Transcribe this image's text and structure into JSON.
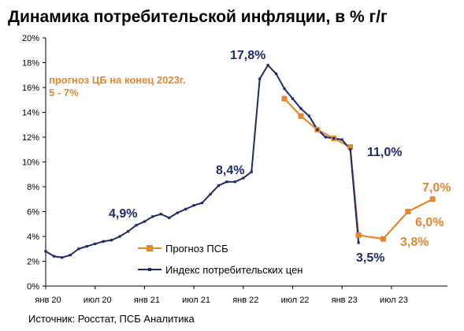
{
  "title": "Динамика потребительской инфляции, в % г/г",
  "source": "Источник: Росстат, ПСБ Аналитика",
  "chart_data": {
    "type": "line",
    "title": "Динамика потребительской инфляции, в % г/г",
    "ylim": [
      0,
      20
    ],
    "y_ticks": [
      "0%",
      "2%",
      "4%",
      "6%",
      "8%",
      "10%",
      "12%",
      "14%",
      "16%",
      "18%",
      "20%"
    ],
    "x_ticks": [
      "янв 20",
      "июл 20",
      "янв 21",
      "июл 21",
      "янв 22",
      "июл 22",
      "янв 23",
      "июл 23"
    ],
    "grid": false,
    "legend_position": "bottom-center",
    "colors": {
      "actual": "#1f2a6b",
      "forecast": "#e6862e",
      "cb_note": "#e6862e"
    },
    "series": [
      {
        "name": "Индекс потребительских цен",
        "x": [
          "2020-01",
          "2020-02",
          "2020-03",
          "2020-04",
          "2020-05",
          "2020-06",
          "2020-07",
          "2020-08",
          "2020-09",
          "2020-10",
          "2020-11",
          "2020-12",
          "2021-01",
          "2021-02",
          "2021-03",
          "2021-04",
          "2021-05",
          "2021-06",
          "2021-07",
          "2021-08",
          "2021-09",
          "2021-10",
          "2021-11",
          "2021-12",
          "2022-01",
          "2022-02",
          "2022-03",
          "2022-04",
          "2022-05",
          "2022-06",
          "2022-07",
          "2022-08",
          "2022-09",
          "2022-10",
          "2022-11",
          "2022-12",
          "2023-01",
          "2023-02",
          "2023-03"
        ],
        "values": [
          2.8,
          2.4,
          2.3,
          2.5,
          3.0,
          3.2,
          3.4,
          3.6,
          3.7,
          4.0,
          4.4,
          4.9,
          5.2,
          5.6,
          5.8,
          5.5,
          5.9,
          6.2,
          6.5,
          6.7,
          7.4,
          8.1,
          8.4,
          8.4,
          8.7,
          9.2,
          16.7,
          17.8,
          17.1,
          15.9,
          15.1,
          14.3,
          13.7,
          12.6,
          12.0,
          11.9,
          11.8,
          11.0,
          3.5
        ]
      },
      {
        "name": "Прогноз ПСБ",
        "x": [
          "2022-06",
          "2022-08",
          "2022-10",
          "2022-12",
          "2023-02",
          "2023-03",
          "2023-06",
          "2023-09",
          "2023-12"
        ],
        "values": [
          15.1,
          13.7,
          12.6,
          11.9,
          11.2,
          4.1,
          3.8,
          6.0,
          7.0
        ]
      }
    ],
    "annotations": [
      {
        "text": "прогноз ЦБ на конец 2023г.",
        "series": "note"
      },
      {
        "text": "5 - 7%",
        "series": "note"
      },
      {
        "text": "4,9%",
        "x": "2020-12",
        "series": "Индекс потребительских цен"
      },
      {
        "text": "8,4%",
        "x": "2021-12",
        "series": "Индекс потребительских цен"
      },
      {
        "text": "17,8%",
        "x": "2022-04",
        "series": "Индекс потребительских цен"
      },
      {
        "text": "11,0%",
        "x": "2023-02",
        "series": "Индекс потребительских цен"
      },
      {
        "text": "3,5%",
        "x": "2023-03",
        "series": "Индекс потребительских цен"
      },
      {
        "text": "3,8%",
        "x": "2023-06",
        "series": "Прогноз ПСБ"
      },
      {
        "text": "6,0%",
        "x": "2023-09",
        "series": "Прогноз ПСБ"
      },
      {
        "text": "7,0%",
        "x": "2023-12",
        "series": "Прогноз ПСБ"
      }
    ]
  }
}
